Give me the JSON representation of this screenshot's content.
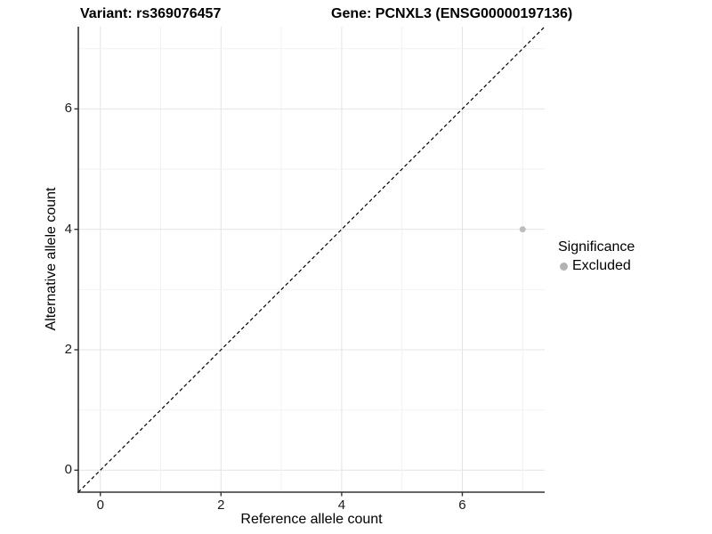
{
  "title": {
    "variant_label": "Variant: rs369076457",
    "gene_label": "Gene: PCNXL3 (ENSG00000197136)"
  },
  "chart_data": {
    "type": "scatter",
    "title": "Variant: rs369076457   Gene: PCNXL3 (ENSG00000197136)",
    "xlabel": "Reference allele count",
    "ylabel": "Alternative allele count",
    "xlim": [
      -0.365,
      7.365
    ],
    "ylim": [
      -0.365,
      7.365
    ],
    "x_ticks": [
      0,
      2,
      4,
      6
    ],
    "y_ticks": [
      0,
      2,
      4,
      6
    ],
    "grid": {
      "major_every": 2,
      "minor_every": 1,
      "major_color": "#e4e4e4",
      "minor_color": "#f2f2f2"
    },
    "series": [
      {
        "name": "Excluded",
        "color": "#bdbdbd",
        "points": [
          {
            "x": 7,
            "y": 4
          }
        ]
      }
    ],
    "reference_line": {
      "type": "identity",
      "equation": "y = x",
      "style": "dashed",
      "color": "#000000"
    },
    "legend": {
      "title": "Significance",
      "position": "right",
      "entries": [
        {
          "label": "Excluded",
          "color": "#b3b3b3"
        }
      ]
    },
    "axis_color": "#333333"
  }
}
